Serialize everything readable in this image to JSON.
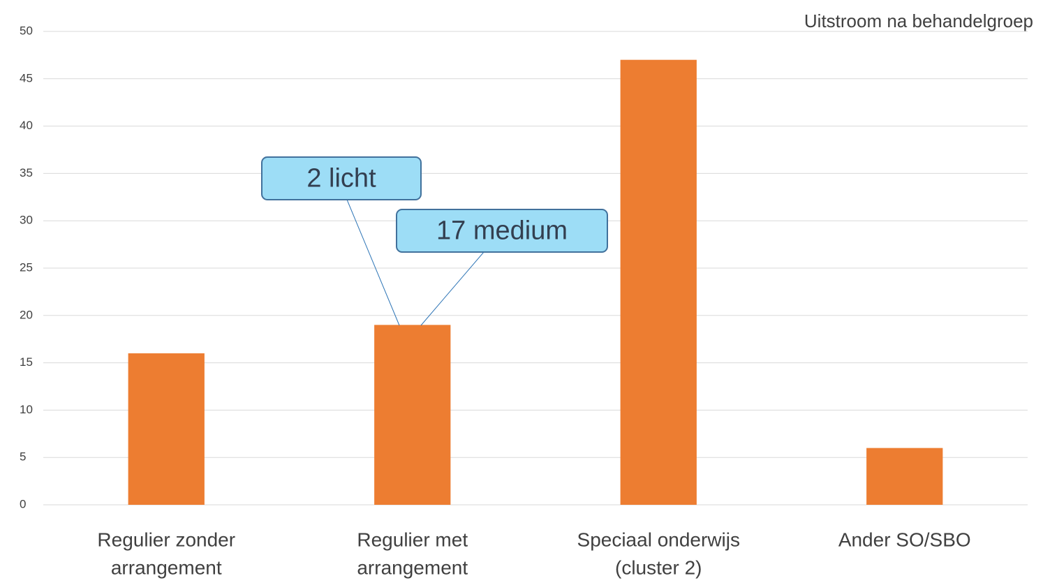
{
  "chart_data": {
    "type": "bar",
    "title": "Uitstroom na behandelgroep",
    "categories": [
      [
        "Regulier zonder",
        "arrangement"
      ],
      [
        "Regulier met",
        "arrangement"
      ],
      [
        "Speciaal onderwijs",
        "(cluster 2)"
      ],
      [
        "Ander SO/SBO"
      ]
    ],
    "values": [
      16,
      19,
      47,
      6
    ],
    "color": "#ed7d31",
    "ylim": [
      0,
      50
    ],
    "yticks": [
      0,
      5,
      10,
      15,
      20,
      25,
      30,
      35,
      40,
      45,
      50
    ],
    "grid": true,
    "annotations": [
      {
        "text": "2 licht"
      },
      {
        "text": "17 medium"
      }
    ]
  }
}
